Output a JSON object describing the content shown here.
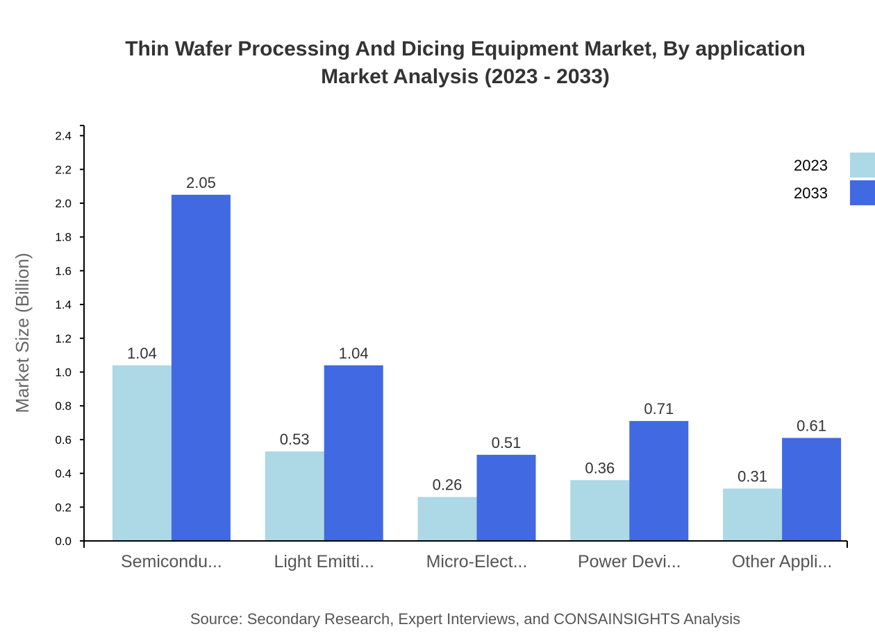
{
  "chart_data": {
    "type": "bar",
    "title_lines": [
      "Thin Wafer Processing And Dicing Equipment Market, By application",
      "Market Analysis (2023 - 2033)"
    ],
    "ylabel": "Market Size (Billion)",
    "xlabel": "",
    "ylim": [
      0,
      2.46
    ],
    "yticks": [
      "0.0",
      "0.2",
      "0.4",
      "0.6",
      "0.8",
      "1.0",
      "1.2",
      "1.4",
      "1.6",
      "1.8",
      "2.0",
      "2.2",
      "2.4"
    ],
    "categories": [
      "Semicondu...",
      "Light Emitti...",
      "Micro-Elect...",
      "Power Devi...",
      "Other Appli..."
    ],
    "series": [
      {
        "name": "2023",
        "color": "#ADD8E6",
        "values": [
          1.04,
          0.53,
          0.26,
          0.36,
          0.31
        ]
      },
      {
        "name": "2033",
        "color": "#4169E1",
        "values": [
          2.05,
          1.04,
          0.51,
          0.71,
          0.61
        ]
      }
    ],
    "legend_position": "top-right",
    "grid": false,
    "source": "Source: Secondary Research, Expert Interviews, and CONSAINSIGHTS Analysis"
  }
}
